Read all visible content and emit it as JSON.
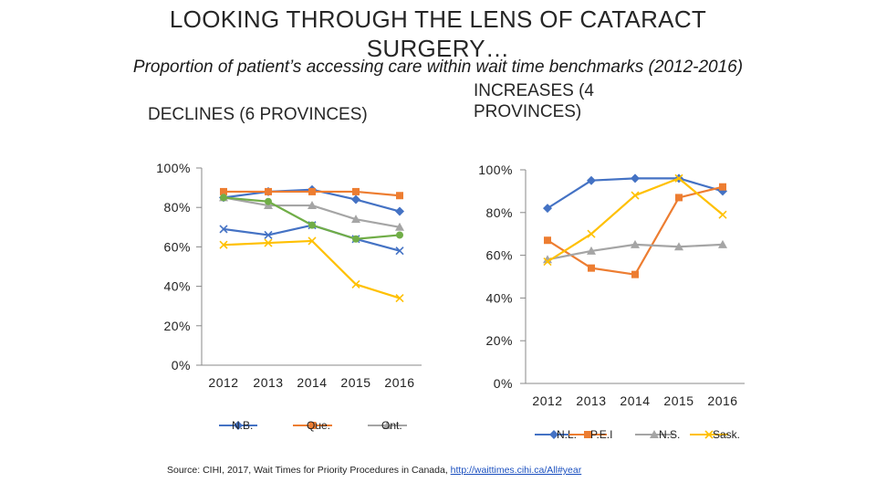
{
  "slide": {
    "title_line1": "LOOKING THROUGH THE LENS OF CATARACT",
    "title_line2": "SURGERY…",
    "subtitle": "Proportion of patient’s accessing care within wait time benchmarks (2012-2016)",
    "left_heading": "DECLINES (6 PROVINCES)",
    "right_heading_line1": "INCREASES (4",
    "right_heading_line2": "PROVINCES)",
    "source_text": "Source: CIHI, 2017, Wait Times for Priority Procedures in Canada, ",
    "source_link": "http://waittimes.cihi.ca/All#year"
  },
  "chart_data": [
    {
      "type": "line",
      "title": "DECLINES (6 PROVINCES)",
      "x": [
        "2012",
        "2013",
        "2014",
        "2015",
        "2016"
      ],
      "ylim": [
        0,
        100
      ],
      "yticks": [
        "0%",
        "20%",
        "40%",
        "60%",
        "80%",
        "100%"
      ],
      "legend_position": "bottom",
      "series": [
        {
          "name": "N.B.",
          "color": "#4472C4",
          "marker": "diamond",
          "values": [
            85,
            88,
            89,
            84,
            78
          ]
        },
        {
          "name": "Que.",
          "color": "#ED7D31",
          "marker": "square",
          "values": [
            88,
            88,
            88,
            88,
            86
          ]
        },
        {
          "name": "Ont.",
          "color": "#A5A5A5",
          "marker": "triangle",
          "values": [
            85,
            81,
            81,
            74,
            70
          ]
        },
        {
          "color": "#4472C4",
          "marker": "x",
          "values": [
            69,
            66,
            71,
            64,
            58
          ]
        },
        {
          "color": "#70AD47",
          "marker": "circle",
          "values": [
            85,
            83,
            71,
            64,
            66
          ]
        },
        {
          "color": "#FFC000",
          "marker": "x",
          "values": [
            61,
            62,
            63,
            41,
            34
          ]
        }
      ]
    },
    {
      "type": "line",
      "title": "INCREASES (4 PROVINCES)",
      "x": [
        "2012",
        "2013",
        "2014",
        "2015",
        "2016"
      ],
      "ylim": [
        0,
        100
      ],
      "yticks": [
        "0%",
        "20%",
        "40%",
        "60%",
        "80%",
        "100%"
      ],
      "legend_position": "bottom",
      "series": [
        {
          "name": "N.L.",
          "color": "#4472C4",
          "marker": "diamond",
          "values": [
            82,
            95,
            96,
            96,
            90
          ]
        },
        {
          "name": "P.E.I",
          "color": "#ED7D31",
          "marker": "square",
          "values": [
            67,
            54,
            51,
            87,
            92
          ]
        },
        {
          "name": "N.S.",
          "color": "#A5A5A5",
          "marker": "triangle",
          "values": [
            58,
            62,
            65,
            64,
            65
          ]
        },
        {
          "name": "Sask.",
          "color": "#FFC000",
          "marker": "x",
          "values": [
            57,
            70,
            88,
            96,
            79
          ]
        }
      ]
    }
  ]
}
